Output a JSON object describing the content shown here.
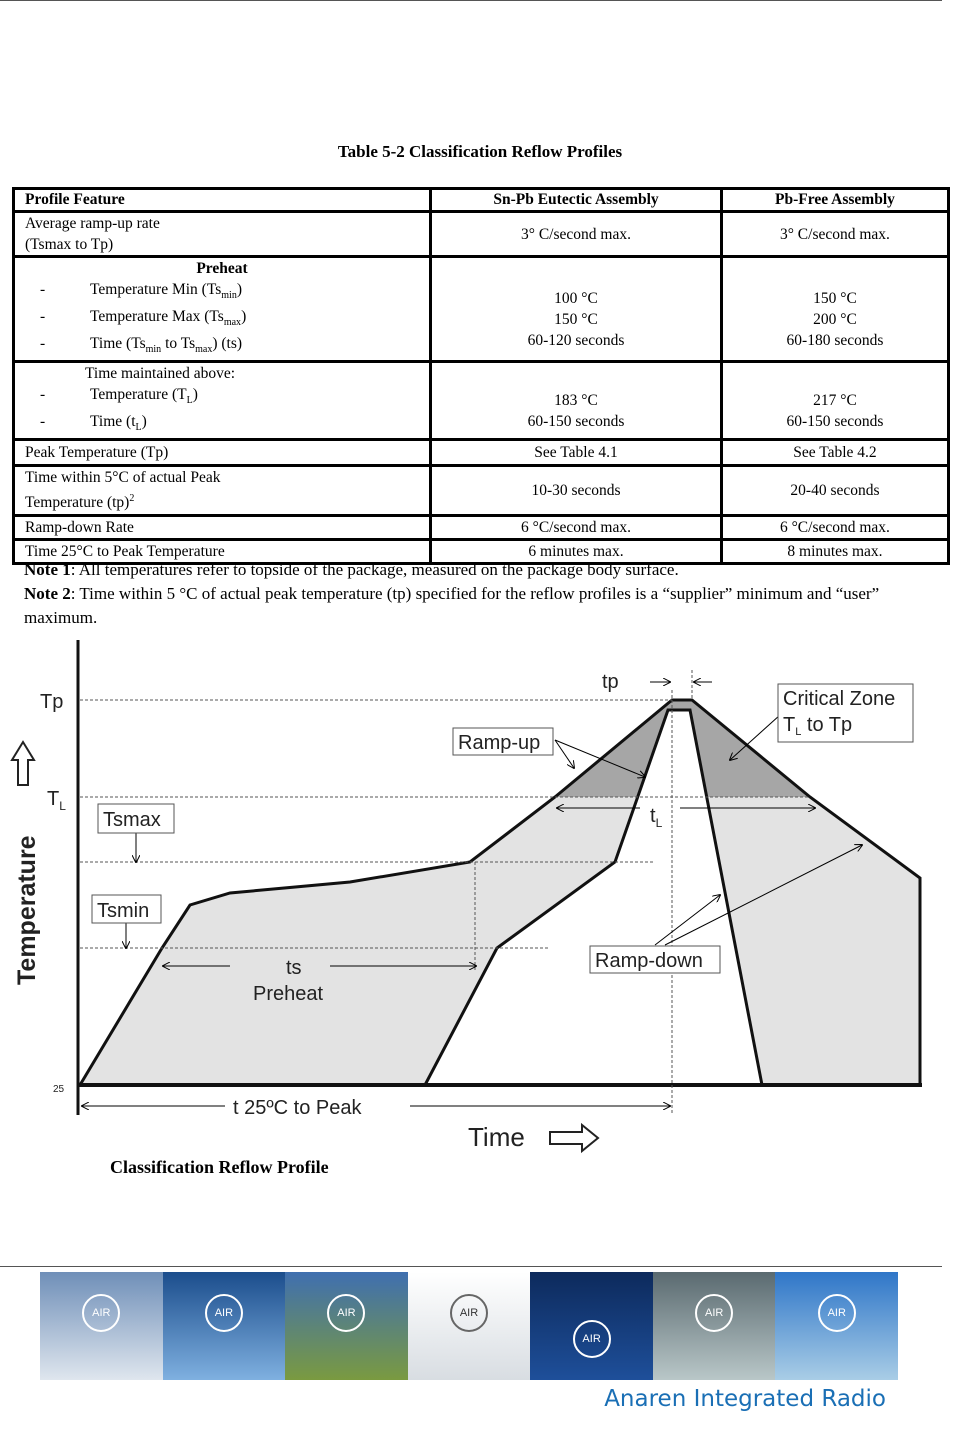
{
  "title": "Table 5-2 Classification Reflow Profiles",
  "table": {
    "headers": [
      "Profile Feature",
      "Sn-Pb Eutectic Assembly",
      "Pb-Free Assembly"
    ],
    "ramp_up": {
      "l1": "Average ramp-up rate",
      "l2": "(Tsmax to Tp)",
      "snpb": "3° C/second max.",
      "pbfree": "3° C/second max."
    },
    "preheat": {
      "heading": "Preheat",
      "min": "Temperature Min (Ts",
      "min_sub": "min",
      "max": "Temperature Max (Ts",
      "max_sub": "max",
      "time_a": "Time (Ts",
      "time_b": " to Ts",
      "time_c": ") (ts)",
      "snpb": [
        "100 °C",
        "150 °C",
        "60-120 seconds"
      ],
      "pbfree": [
        "150 °C",
        "200 °C",
        "60-180 seconds"
      ]
    },
    "above": {
      "heading": "Time maintained above:",
      "temp": "Temperature (T",
      "temp_sub": "L",
      "time": "Time (t",
      "snpb": [
        "183 °C",
        "60-150 seconds"
      ],
      "pbfree": [
        "217 °C",
        "60-150 seconds"
      ]
    },
    "peak": {
      "label": "Peak Temperature (Tp)",
      "snpb": "See Table 4.1",
      "pbfree": "See Table 4.2"
    },
    "within": {
      "l1": "Time within 5°C of actual Peak",
      "l2": "Temperature (tp)",
      "sup": "2",
      "snpb": "10-30 seconds",
      "pbfree": "20-40 seconds"
    },
    "down": {
      "label": "Ramp-down Rate",
      "snpb": "6 °C/second max.",
      "pbfree": "6 °C/second max."
    },
    "t25": {
      "label": "Time 25°C to Peak Temperature",
      "snpb": "6 minutes max.",
      "pbfree": "8 minutes max."
    }
  },
  "notes": {
    "n1_label": "Note 1",
    "n1": ": All temperatures refer to topside of the package, measured on the package body surface.",
    "n2_label": "Note 2",
    "n2": ": Time within 5 °C of actual peak temperature  (tp) specified for the reflow profiles is a “supplier” minimum and “user” maximum."
  },
  "diagram": {
    "tp_axis": "Tp",
    "tl": "T",
    "tl_sub": "L",
    "y_label": "Temperature",
    "y25": "25",
    "tp": "tp",
    "critical1": "Critical Zone",
    "critical2a": "T",
    "critical2b": " to Tp",
    "ramp_up": "Ramp-up",
    "ramp_down": "Ramp-down",
    "tsmax": "Tsmax",
    "tsmin": "Tsmin",
    "ts": "ts",
    "preheat": "Preheat",
    "t_l": "t",
    "t25": "t  25ºC to Peak",
    "x_label": "Time",
    "caption": "Classification Reflow Profile"
  },
  "footer": {
    "badge": "AIR",
    "brand": "Anaren Integrated Radio"
  }
}
